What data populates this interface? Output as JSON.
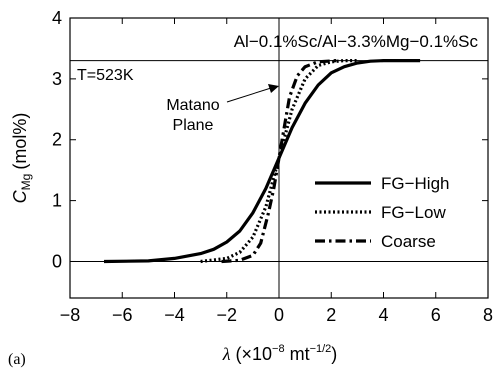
{
  "chart_data": {
    "type": "line",
    "panel_label": "(a)",
    "title_box": "Al−0.1%Sc/Al−3.3%Mg−0.1%Sc",
    "temperature_label": "T=523K",
    "annotation": [
      "Matano",
      "Plane"
    ],
    "ylabel_main": "C",
    "ylabel_sub": "Mg",
    "ylabel_unit": "(mol%)",
    "xlabel_main": "λ",
    "xlabel_pre": "(×10",
    "xlabel_exp": "−8",
    "xlabel_mid": " mt",
    "xlabel_exp2": "−1/2",
    "xlabel_post": ")",
    "xlim": [
      -8,
      8
    ],
    "ylim": [
      -0.6,
      4
    ],
    "xticks": [
      -8,
      -6,
      -4,
      -2,
      0,
      2,
      4,
      6,
      8
    ],
    "xtick_labels": [
      "−8",
      "−6",
      "−4",
      "−2",
      "0",
      "2",
      "4",
      "6",
      "8"
    ],
    "yticks": [
      0,
      1,
      2,
      3,
      4
    ],
    "ytick_labels": [
      "0",
      "1",
      "2",
      "3",
      "4"
    ],
    "reference_lines": {
      "y_top": 3.3,
      "y_bottom": 0,
      "x_matano": 0
    },
    "legend_position": "lower-right",
    "series": [
      {
        "name": "FG−High",
        "style": "solid",
        "x": [
          -6.7,
          -5.0,
          -4.0,
          -3.0,
          -2.5,
          -2.0,
          -1.5,
          -1.0,
          -0.5,
          0.0,
          0.5,
          1.0,
          1.5,
          2.0,
          2.5,
          3.0,
          3.5,
          4.0,
          4.5,
          5.4
        ],
        "y": [
          0.0,
          0.01,
          0.05,
          0.13,
          0.2,
          0.32,
          0.5,
          0.8,
          1.2,
          1.7,
          2.2,
          2.6,
          2.9,
          3.1,
          3.2,
          3.26,
          3.29,
          3.3,
          3.3,
          3.3
        ]
      },
      {
        "name": "FG−Low",
        "style": "dotted",
        "x": [
          -3.0,
          -2.0,
          -1.5,
          -1.0,
          -0.5,
          0.0,
          0.5,
          1.0,
          1.5,
          2.0,
          2.5,
          3.0
        ],
        "y": [
          0.0,
          0.05,
          0.15,
          0.4,
          0.9,
          1.7,
          2.5,
          3.0,
          3.22,
          3.28,
          3.3,
          3.3
        ]
      },
      {
        "name": "Coarse",
        "style": "dashdot",
        "x": [
          -2.2,
          -1.5,
          -1.0,
          -0.7,
          -0.4,
          -0.2,
          0.0,
          0.2,
          0.4,
          0.7,
          1.0,
          1.5,
          2.2
        ],
        "y": [
          0.0,
          0.02,
          0.1,
          0.3,
          0.8,
          1.2,
          1.7,
          2.2,
          2.7,
          3.05,
          3.2,
          3.28,
          3.3
        ]
      }
    ]
  }
}
